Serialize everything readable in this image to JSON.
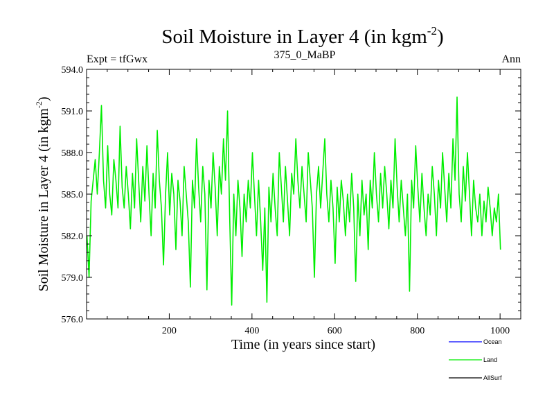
{
  "chart_data": {
    "type": "line",
    "title": "Soil Moisture in Layer 4 (in kgm",
    "title_sup": "-2",
    "title_close": ")",
    "subtitle_left": "Expt = tfGwx",
    "subtitle_center": "375_0_MaBP",
    "subtitle_right": "Ann",
    "xlabel": "Time (in years since start)",
    "ylabel": "Soil Moisture in Layer 4 (in kgm",
    "ylabel_sup": "-2",
    "ylabel_close": ")",
    "xlim": [
      0,
      1050
    ],
    "ylim": [
      576.0,
      594.0
    ],
    "xticks": [
      200,
      400,
      600,
      800,
      1000
    ],
    "xtick_labels": [
      "200",
      "400",
      "600",
      "800",
      "1000"
    ],
    "yticks": [
      576,
      579,
      582,
      585,
      588,
      591,
      594
    ],
    "ytick_labels": [
      "576.0",
      "579.0",
      "582.0",
      "585.0",
      "588.0",
      "591.0",
      "594.0"
    ],
    "legend": [
      {
        "name": "Ocean",
        "color": "#0000ff"
      },
      {
        "name": "Land",
        "color": "#00ee00"
      },
      {
        "name": "AllSurf",
        "color": "#000000"
      }
    ],
    "series": [
      {
        "name": "Land",
        "color": "#00ee00",
        "x_start": 1,
        "x_step": 5,
        "values": [
          582.0,
          579.0,
          584.5,
          586.0,
          587.5,
          585.0,
          588.0,
          591.4,
          586.0,
          584.0,
          588.5,
          585.0,
          583.5,
          587.5,
          586.0,
          584.0,
          589.9,
          585.5,
          584.0,
          587.0,
          585.0,
          582.5,
          586.5,
          584.0,
          589.0,
          586.0,
          583.0,
          587.0,
          584.5,
          588.5,
          585.0,
          582.0,
          586.5,
          584.0,
          589.6,
          586.0,
          584.0,
          579.9,
          585.0,
          588.0,
          583.5,
          586.5,
          585.0,
          581.0,
          586.0,
          584.5,
          582.0,
          587.0,
          585.0,
          583.0,
          578.3,
          586.0,
          584.0,
          589.0,
          585.5,
          583.0,
          587.0,
          585.0,
          578.1,
          586.0,
          584.0,
          588.0,
          585.5,
          582.0,
          587.0,
          585.0,
          589.0,
          586.0,
          591.0,
          583.5,
          577.0,
          585.0,
          582.0,
          586.0,
          584.0,
          580.5,
          585.0,
          583.0,
          586.0,
          584.0,
          588.0,
          585.0,
          582.0,
          586.0,
          583.0,
          579.5,
          584.0,
          577.2,
          585.5,
          583.0,
          586.5,
          584.0,
          582.0,
          588.0,
          585.5,
          583.0,
          587.0,
          584.5,
          582.0,
          586.5,
          585.0,
          589.0,
          586.0,
          584.0,
          587.0,
          585.0,
          583.0,
          588.0,
          586.0,
          584.0,
          579.0,
          585.0,
          587.0,
          584.0,
          586.5,
          589.0,
          585.0,
          583.0,
          586.0,
          584.0,
          580.0,
          585.5,
          583.0,
          586.0,
          584.5,
          582.0,
          585.0,
          583.0,
          586.5,
          584.0,
          578.7,
          585.0,
          582.0,
          586.0,
          583.5,
          585.0,
          581.0,
          586.0,
          584.0,
          588.0,
          585.0,
          583.0,
          586.5,
          584.0,
          587.0,
          585.0,
          582.5,
          586.0,
          584.0,
          589.0,
          585.5,
          583.0,
          586.0,
          584.0,
          582.0,
          585.0,
          578.0,
          586.0,
          584.0,
          588.5,
          585.5,
          583.0,
          586.5,
          584.0,
          582.0,
          585.0,
          583.5,
          587.0,
          585.0,
          582.0,
          586.0,
          584.0,
          588.0,
          585.5,
          583.0,
          586.5,
          584.0,
          589.0,
          586.0,
          592.0,
          585.0,
          583.0,
          587.0,
          584.5,
          588.0,
          585.0,
          582.0,
          586.0,
          584.0,
          583.0,
          585.0,
          582.0,
          584.5,
          583.0,
          585.5,
          584.0,
          582.0,
          584.0,
          583.0,
          585.0,
          581.0
        ]
      }
    ]
  }
}
